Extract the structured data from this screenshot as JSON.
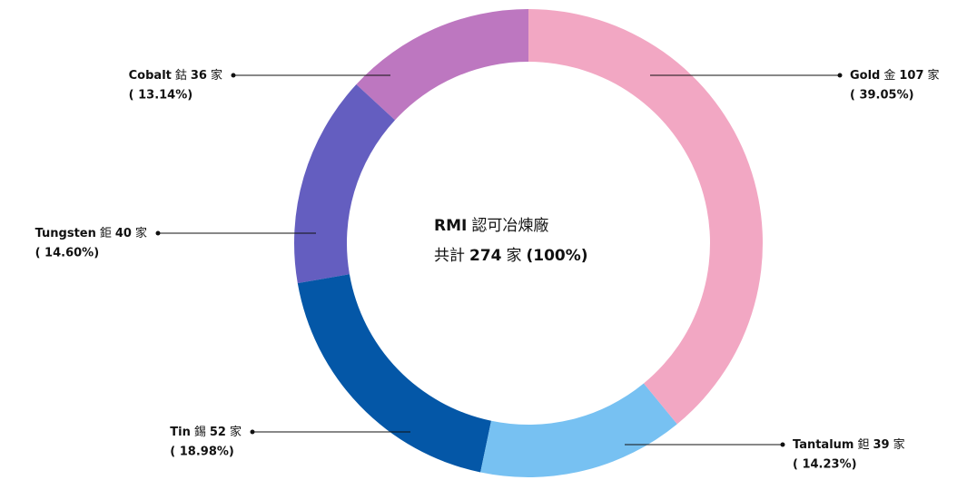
{
  "chart_data": {
    "type": "donut",
    "categories": [
      "Gold",
      "Tantalum",
      "Tin",
      "Tungsten",
      "Cobalt"
    ],
    "category_labels_zh": [
      "金",
      "鉭",
      "錫",
      "鉅",
      "鈷"
    ],
    "values": [
      107,
      39,
      52,
      40,
      36
    ],
    "value_unit": "家",
    "percent_labels": [
      "( 39.05%)",
      "( 14.23%)",
      "( 18.98%)",
      "( 14.60%)",
      "( 13.14%)"
    ],
    "colors": [
      "#f2a7c3",
      "#77c1f2",
      "#0457a7",
      "#645ec0",
      "#bd77c0"
    ],
    "center": {
      "line1_bold": "RMI",
      "line1": "認可冶煉廠",
      "line2_pre": "共計",
      "total": 274,
      "unit": "家",
      "total_label": "(100%)"
    }
  }
}
